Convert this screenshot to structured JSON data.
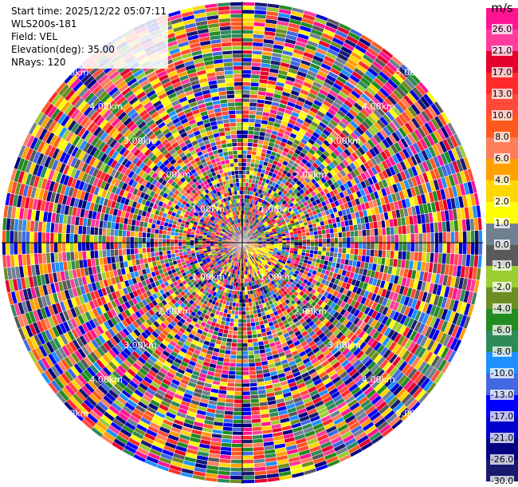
{
  "info": {
    "start_time": "Start time: 2025/12/22 05:07:11",
    "instrument": "WLS200s-181",
    "field": "Field: VEL",
    "elevation": "Elevation(deg): 35.00",
    "nrays": "NRays: 120"
  },
  "chart_data": {
    "type": "heatmap",
    "projection": "polar-ppi",
    "field": "VEL",
    "n_rays": 120,
    "elevation_deg": 35.0,
    "range_ring_labels": [
      "1.00km",
      "2.00km",
      "3.00km",
      "4.00km",
      "5.00km"
    ],
    "range_max_km": 5.0,
    "colorbar": {
      "unit": "m/s",
      "ticks": [
        "26.0",
        "21.0",
        "17.0",
        "13.0",
        "10.0",
        "8.0",
        "6.0",
        "4.0",
        "2.0",
        "1.0",
        "0.0",
        "-1.0",
        "-2.0",
        "-4.0",
        "-6.0",
        "-8.0",
        "-10.0",
        "-13.0",
        "-17.0",
        "-21.0",
        "-26.0",
        "-30.0"
      ],
      "colors": [
        "#ff1493",
        "#ff3c9b",
        "#e6002d",
        "#ff2a2a",
        "#ff4a3a",
        "#ff5a1e",
        "#ff7e5a",
        "#ffa000",
        "#ffd700",
        "#ffff00",
        "#708090",
        "#5a5a5a",
        "#9acd32",
        "#6b8e23",
        "#228b22",
        "#2e8b57",
        "#1e90ff",
        "#4169e1",
        "#0000ff",
        "#0000cd",
        "#000080",
        "#191970"
      ]
    }
  }
}
